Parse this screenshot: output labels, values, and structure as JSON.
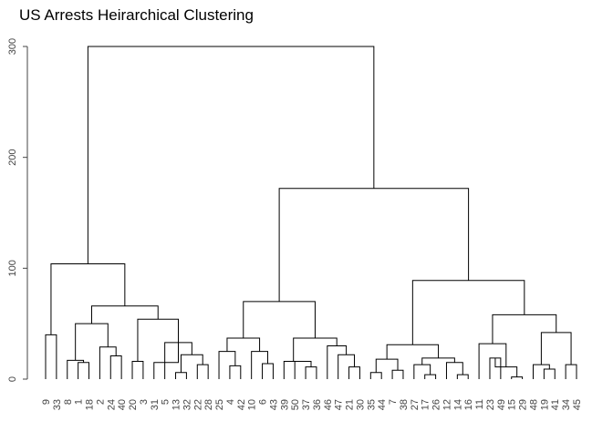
{
  "chart_data": {
    "type": "dendrogram",
    "title": "US Arrests Heirarchical Clustering",
    "xlabel": "",
    "ylabel": "",
    "ylim": [
      0,
      300
    ],
    "y_ticks": [
      0,
      100,
      200,
      300
    ],
    "root_height": 300,
    "leaf_order": [
      "9",
      "33",
      "8",
      "1",
      "18",
      "2",
      "24",
      "40",
      "20",
      "3",
      "31",
      "5",
      "13",
      "32",
      "22",
      "28",
      "25",
      "4",
      "42",
      "10",
      "6",
      "43",
      "39",
      "50",
      "37",
      "36",
      "46",
      "47",
      "21",
      "30",
      "35",
      "44",
      "7",
      "38",
      "27",
      "17",
      "26",
      "12",
      "14",
      "16",
      "11",
      "23",
      "49",
      "15",
      "29",
      "48",
      "19",
      "41",
      "34",
      "45"
    ],
    "merges": [
      {
        "id": "c9_33",
        "children": [
          "9",
          "33"
        ],
        "height": 40
      },
      {
        "id": "c1_18",
        "children": [
          "1",
          "18"
        ],
        "height": 15
      },
      {
        "id": "c8_1_18",
        "children": [
          "8",
          "c1_18"
        ],
        "height": 17
      },
      {
        "id": "c24_40",
        "children": [
          "24",
          "40"
        ],
        "height": 21
      },
      {
        "id": "c2_24_40",
        "children": [
          "2",
          "c24_40"
        ],
        "height": 29
      },
      {
        "id": "c8_2",
        "children": [
          "c8_1_18",
          "c2_24_40"
        ],
        "height": 50
      },
      {
        "id": "c20_3",
        "children": [
          "20",
          "3"
        ],
        "height": 16
      },
      {
        "id": "c13_32",
        "children": [
          "13",
          "32"
        ],
        "height": 6
      },
      {
        "id": "c22_28",
        "children": [
          "22",
          "28"
        ],
        "height": 13
      },
      {
        "id": "c13_22",
        "children": [
          "c13_32",
          "c22_28"
        ],
        "height": 22
      },
      {
        "id": "c5_13",
        "children": [
          "5",
          "c13_22"
        ],
        "height": 33
      },
      {
        "id": "c3_5",
        "children": [
          "31",
          "c5_13"
        ],
        "height": 15
      },
      {
        "id": "cA2",
        "children": [
          "c20_3",
          "c5_13"
        ],
        "height": 54
      },
      {
        "id": "cA1",
        "children": [
          "c8_2",
          "cA2"
        ],
        "height": 66
      },
      {
        "id": "cA",
        "children": [
          "c9_33",
          "cA1"
        ],
        "height": 104
      },
      {
        "id": "c4_42",
        "children": [
          "4",
          "42"
        ],
        "height": 12
      },
      {
        "id": "c25_4",
        "children": [
          "25",
          "c4_42"
        ],
        "height": 25
      },
      {
        "id": "c6_43",
        "children": [
          "6",
          "43"
        ],
        "height": 14
      },
      {
        "id": "c10_6",
        "children": [
          "10",
          "c6_43"
        ],
        "height": 25
      },
      {
        "id": "cB1",
        "children": [
          "c25_4",
          "c10_6"
        ],
        "height": 37
      },
      {
        "id": "c37_36",
        "children": [
          "37",
          "36"
        ],
        "height": 11
      },
      {
        "id": "c50_37",
        "children": [
          "50",
          "c37_36"
        ],
        "height": 16
      },
      {
        "id": "c39_50",
        "children": [
          "39",
          "c50_37"
        ],
        "height": 16
      },
      {
        "id": "c21_30",
        "children": [
          "21",
          "30"
        ],
        "height": 11
      },
      {
        "id": "c47_21",
        "children": [
          "47",
          "c21_30"
        ],
        "height": 22
      },
      {
        "id": "c46_47",
        "children": [
          "46",
          "c47_21"
        ],
        "height": 30
      },
      {
        "id": "cB2",
        "children": [
          "c39_50",
          "c46_47"
        ],
        "height": 37
      },
      {
        "id": "cB",
        "children": [
          "cB1",
          "cB2"
        ],
        "height": 70
      },
      {
        "id": "c35_44",
        "children": [
          "35",
          "44"
        ],
        "height": 6
      },
      {
        "id": "c7_38",
        "children": [
          "7",
          "38"
        ],
        "height": 8
      },
      {
        "id": "c35_7",
        "children": [
          "c35_44",
          "c7_38"
        ],
        "height": 18
      },
      {
        "id": "c17_26",
        "children": [
          "17",
          "26"
        ],
        "height": 4
      },
      {
        "id": "c27_17",
        "children": [
          "27",
          "c17_26"
        ],
        "height": 13
      },
      {
        "id": "c14_16",
        "children": [
          "14",
          "16"
        ],
        "height": 4
      },
      {
        "id": "c12_14",
        "children": [
          "12",
          "c14_16"
        ],
        "height": 15
      },
      {
        "id": "c27_12",
        "children": [
          "c27_17",
          "c12_14"
        ],
        "height": 19
      },
      {
        "id": "cC1",
        "children": [
          "c35_7",
          "c27_12"
        ],
        "height": 31
      },
      {
        "id": "c23_49",
        "children": [
          "23",
          "49"
        ],
        "height": 19
      },
      {
        "id": "c15_29",
        "children": [
          "15",
          "29"
        ],
        "height": 2
      },
      {
        "id": "c49_15",
        "children": [
          "c23_49",
          "c15_29"
        ],
        "height": 11
      },
      {
        "id": "c11_23",
        "children": [
          "11",
          "c49_15"
        ],
        "height": 32
      },
      {
        "id": "c19_41",
        "children": [
          "19",
          "41"
        ],
        "height": 9
      },
      {
        "id": "c48_19",
        "children": [
          "48",
          "c19_41"
        ],
        "height": 13
      },
      {
        "id": "c34_45",
        "children": [
          "34",
          "45"
        ],
        "height": 13
      },
      {
        "id": "c48_34",
        "children": [
          "c48_19",
          "c34_45"
        ],
        "height": 42
      },
      {
        "id": "cC2",
        "children": [
          "c11_23",
          "c48_34"
        ],
        "height": 58
      },
      {
        "id": "cC",
        "children": [
          "cC1",
          "cC2"
        ],
        "height": 89
      },
      {
        "id": "cD",
        "children": [
          "cB",
          "cC"
        ],
        "height": 172
      },
      {
        "id": "root",
        "children": [
          "cA",
          "cD"
        ],
        "height": 300
      }
    ]
  }
}
